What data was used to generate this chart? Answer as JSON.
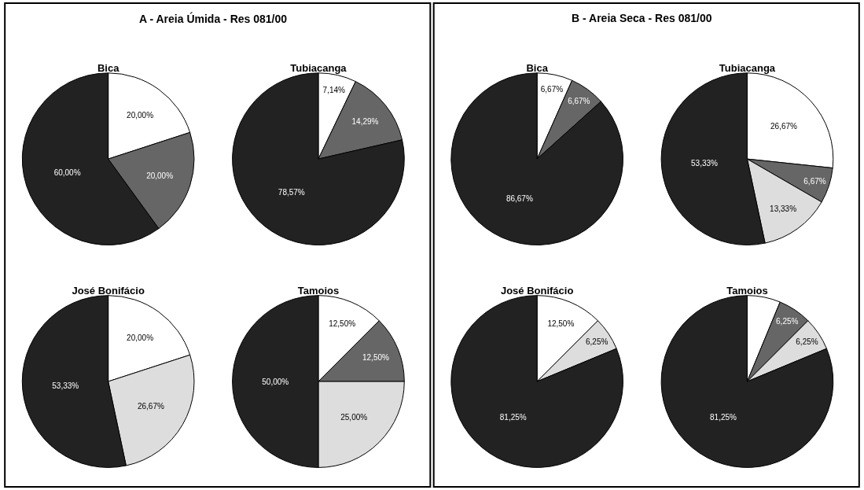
{
  "chart_data": [
    {
      "type": "pie",
      "title": "Bica",
      "annotations": [
        "A - Areia Úmida - Res 081/00"
      ],
      "categories": [
        null,
        null,
        null
      ],
      "values": [
        20,
        20,
        60
      ],
      "colors": [
        "#ffffff",
        "#666666",
        "#222222"
      ],
      "value_labels": [
        "20,00%",
        "20,00%",
        "60,00%"
      ]
    },
    {
      "type": "pie",
      "title": "Tubiacanga",
      "categories": [
        null,
        null,
        null
      ],
      "values": [
        7.14,
        14.29,
        78.57
      ],
      "colors": [
        "#ffffff",
        "#666666",
        "#222222"
      ],
      "value_labels": [
        "7,14%",
        "14,29%",
        "78,57%"
      ]
    },
    {
      "type": "pie",
      "title": "José Bonifácio",
      "categories": [
        null,
        null,
        null
      ],
      "values": [
        20,
        26.67,
        53.33
      ],
      "colors": [
        "#ffffff",
        "#dddddd",
        "#222222"
      ],
      "value_labels": [
        "20,00%",
        "26,67%",
        "53,33%"
      ]
    },
    {
      "type": "pie",
      "title": "Tamoios",
      "categories": [
        null,
        null,
        null,
        null
      ],
      "values": [
        12.5,
        12.5,
        25,
        50
      ],
      "colors": [
        "#ffffff",
        "#666666",
        "#dddddd",
        "#222222"
      ],
      "value_labels": [
        "12,50%",
        "12,50%",
        "25,00%",
        "50,00%"
      ]
    },
    {
      "type": "pie",
      "title": "Bica",
      "annotations": [
        "B - Areia Seca - Res 081/00"
      ],
      "categories": [
        null,
        null,
        null
      ],
      "values": [
        6.67,
        6.67,
        86.67
      ],
      "colors": [
        "#ffffff",
        "#666666",
        "#222222"
      ],
      "value_labels": [
        "6,67%",
        "6,67%",
        "86,67%"
      ]
    },
    {
      "type": "pie",
      "title": "Tubiacanga",
      "categories": [
        null,
        null,
        null,
        null
      ],
      "values": [
        26.67,
        6.67,
        13.33,
        53.33
      ],
      "colors": [
        "#ffffff",
        "#666666",
        "#dddddd",
        "#222222"
      ],
      "value_labels": [
        "26,67%",
        "6,67%",
        "13,33%",
        "53,33%"
      ]
    },
    {
      "type": "pie",
      "title": "José Bonifácio",
      "categories": [
        null,
        null,
        null
      ],
      "values": [
        12.5,
        6.25,
        81.25
      ],
      "colors": [
        "#ffffff",
        "#dddddd",
        "#222222"
      ],
      "value_labels": [
        "12,50%",
        "6,25%",
        "81,25%"
      ]
    },
    {
      "type": "pie",
      "title": "Tamoios",
      "categories": [
        null,
        null,
        null,
        null
      ],
      "values": [
        6.25,
        6.25,
        6.25,
        81.25
      ],
      "colors": [
        "#ffffff",
        "#666666",
        "#dddddd",
        "#222222"
      ],
      "value_labels": [
        null,
        "6,25%",
        "6,25%",
        "81,25%"
      ]
    }
  ]
}
